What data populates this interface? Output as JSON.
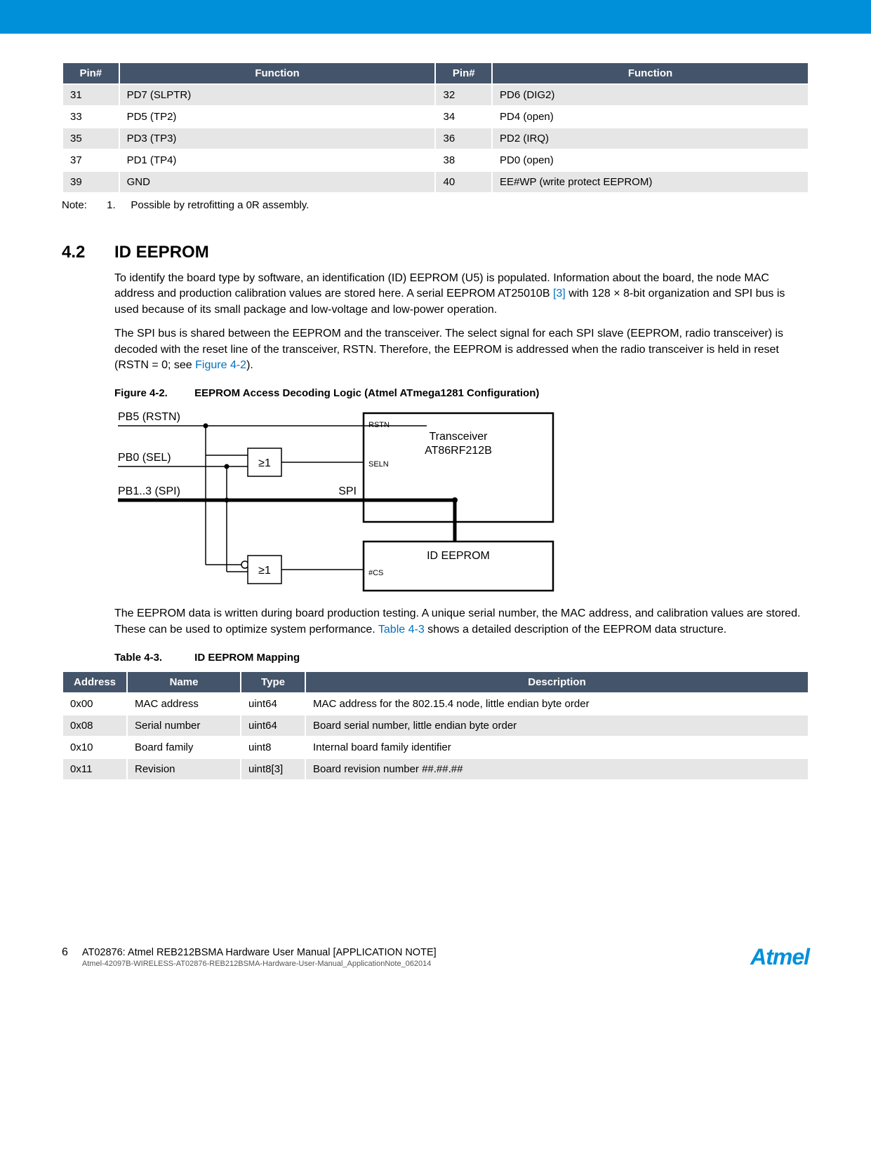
{
  "topbar_color": "#0090da",
  "pin_table": {
    "headers": [
      "Pin#",
      "Function",
      "Pin#",
      "Function"
    ],
    "rows": [
      [
        "31",
        "PD7 (SLPTR)",
        "32",
        "PD6 (DIG2)"
      ],
      [
        "33",
        "PD5 (TP2)",
        "34",
        "PD4 (open)"
      ],
      [
        "35",
        "PD3 (TP3)",
        "36",
        "PD2 (IRQ)"
      ],
      [
        "37",
        "PD1 (TP4)",
        "38",
        "PD0 (open)"
      ],
      [
        "39",
        "GND",
        "40",
        "EE#WP (write protect EEPROM)"
      ]
    ]
  },
  "note": {
    "label": "Note:",
    "num": "1.",
    "text": "Possible by retrofitting a 0R assembly."
  },
  "section": {
    "num": "4.2",
    "title": "ID EEPROM"
  },
  "para1_a": "To identify the board type by software, an identification (ID) EEPROM (U5) is populated. Information about the board, the node MAC address and production calibration values are stored here. A serial EEPROM AT25010B ",
  "para1_ref": "[3]",
  "para1_b": " with 128 × 8-bit organization and SPI bus is used because of its small package and low-voltage and low-power operation.",
  "para2_a": "The SPI bus is shared between the EEPROM and the transceiver. The select signal for each SPI slave (EEPROM, radio transceiver) is decoded with the reset line of the transceiver, RSTN. Therefore, the EEPROM is addressed when the radio transceiver is held in reset (RSTN = 0; see ",
  "para2_ref": "Figure 4-2",
  "para2_b": ").",
  "fig": {
    "label": "Figure 4-2.",
    "title": "EEPROM Access Decoding Logic (Atmel ATmega1281 Configuration)"
  },
  "diagram": {
    "pb5": "PB5 (RSTN)",
    "pb0": "PB0 (SEL)",
    "pb13": "PB1..3 (SPI)",
    "gate": "≥1",
    "rstn": "RSTN",
    "seln": "SELN",
    "trx1": "Transceiver",
    "trx2": "AT86RF212B",
    "spi": "SPI",
    "eeprom": "ID EEPROM",
    "cs": "#CS"
  },
  "para3_a": "The EEPROM data is written during board production testing. A unique serial number, the MAC address, and calibration values are stored. These can be used to optimize system performance. ",
  "para3_ref": "Table 4-3",
  "para3_b": " shows a detailed description of the EEPROM data structure.",
  "tbl": {
    "label": "Table 4-3.",
    "title": "ID EEPROM Mapping"
  },
  "eeprom_table": {
    "headers": [
      "Address",
      "Name",
      "Type",
      "Description"
    ],
    "rows": [
      [
        "0x00",
        "MAC address",
        "uint64",
        "MAC address for the 802.15.4 node, little endian byte order"
      ],
      [
        "0x08",
        "Serial number",
        "uint64",
        "Board serial number, little endian byte order"
      ],
      [
        "0x10",
        "Board family",
        "uint8",
        "Internal board family identifier"
      ],
      [
        "0x11",
        "Revision",
        "uint8[3]",
        "Board revision number ##.##.##"
      ]
    ]
  },
  "footer": {
    "page": "6",
    "title": "AT02876: Atmel REB212BSMA Hardware User Manual [APPLICATION NOTE]",
    "sub": "Atmel-42097B-WIRELESS-AT02876-REB212BSMA-Hardware-User-Manual_ApplicationNote_062014",
    "logo": "Atmel"
  }
}
